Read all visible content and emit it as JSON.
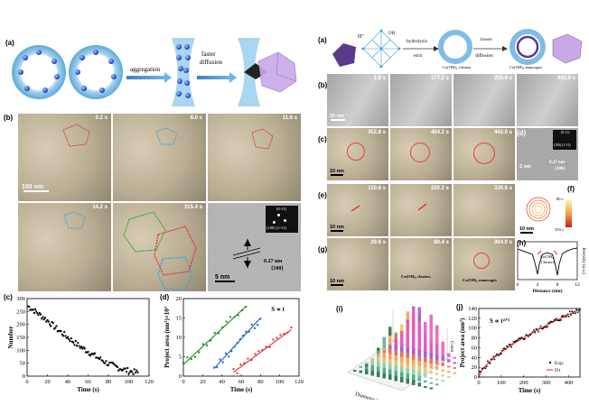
{
  "left": {
    "a": {
      "label": "(a)",
      "aggregation": "aggregation",
      "faster_diffusion_1": "faster",
      "faster_diffusion_2": "diffusion"
    },
    "b": {
      "label": "(b)",
      "frames": [
        "0.2 s",
        "8.0 s",
        "11.6 s",
        "14.2 s",
        "315.4 s"
      ],
      "scale": "100 nm",
      "hr_scale": "5 nm",
      "fft_top": "(0-11)",
      "fft_bottom": "(100)  (1-11)",
      "d_spacing_1": "0.27 nm",
      "d_spacing_2": "{100}"
    },
    "c": {
      "label": "(c)"
    },
    "d": {
      "label": "(d)",
      "relation": "S ∝ t"
    }
  },
  "right": {
    "a": {
      "label": "(a)",
      "h_plus": "H⁺",
      "oh": "OH",
      "hydrolysis_1": "hydrolysis",
      "hydrolysis_2": "etch",
      "lower_1": "lower",
      "lower_2": "diffusion",
      "clusters": "Co(OH)₂ clusters",
      "nanocages": "Co(OH)₂ nanocages"
    },
    "b": {
      "label": "(b)",
      "frames": [
        "1.8 s",
        "177.2 s",
        "255.4 s",
        "443.6 s"
      ],
      "scale": "50 nm"
    },
    "c": {
      "label": "(c)",
      "frames": [
        "352.8 s",
        "404.2 s",
        "442.0 s"
      ],
      "scale": "10 nm"
    },
    "d": {
      "label": "(d)",
      "fft_top": "(0-11)",
      "fft_bottom": "(100)  (1-11)",
      "d_spacing_1": "0.27 nm",
      "d_spacing_2": "{100}",
      "scale": "2 nm"
    },
    "e": {
      "label": "(e)",
      "frames": [
        "110.6 s",
        "220.2 s",
        "330.6 s"
      ],
      "scale": "10 nm"
    },
    "f": {
      "label": "(f)",
      "t1": "80 s",
      "t2": "350 s",
      "scale": "10 nm"
    },
    "g": {
      "label": "(g)",
      "frames": [
        "29.6 s",
        "80.4 s",
        "304.0 s"
      ],
      "scale": "10 nm",
      "clusters": "Co(OH)₂ clusters",
      "nanocages": "Co(OH)₂ nanocages"
    },
    "h": {
      "label": "(h)",
      "annot_1": "Co(OH)₂",
      "annot_2": "Clusters"
    },
    "i": {
      "label": "(i)",
      "xlabel": "Diameter (nm)",
      "ylabel": "Count"
    },
    "j": {
      "label": "(j)",
      "relation": "S ∝ t²ᐟ³",
      "legend_exp": "Exp.",
      "legend_fit": "Fit"
    }
  },
  "chart_data": [
    {
      "id": "left-c",
      "type": "scatter",
      "xlabel": "Time (s)",
      "ylabel": "Number",
      "xlim": [
        0,
        120
      ],
      "ylim": [
        0,
        300
      ],
      "xticks": [
        0,
        20,
        40,
        60,
        80,
        100,
        120
      ],
      "yticks": [
        0,
        50,
        100,
        150,
        200,
        250,
        300
      ],
      "series": [
        {
          "name": "",
          "color": "#000000",
          "trend": [
            [
              1,
              270
            ],
            [
              10,
              245
            ],
            [
              20,
              215
            ],
            [
              30,
              180
            ],
            [
              40,
              150
            ],
            [
              50,
              120
            ],
            [
              60,
              95
            ],
            [
              70,
              70
            ],
            [
              80,
              48
            ],
            [
              90,
              32
            ],
            [
              100,
              20
            ],
            [
              110,
              12
            ]
          ]
        }
      ]
    },
    {
      "id": "left-d",
      "type": "scatter",
      "xlabel": "Time (s)",
      "ylabel": "Project area (nm²)×10³",
      "xlim": [
        0,
        120
      ],
      "ylim": [
        0,
        20
      ],
      "xticks": [
        0,
        20,
        40,
        60,
        80,
        100,
        120
      ],
      "yticks": [
        0,
        5,
        10,
        15,
        20
      ],
      "series": [
        {
          "name": "",
          "color": "#1a8a1a",
          "fit": [
            [
              0,
              3
            ],
            [
              65,
              18
            ]
          ]
        },
        {
          "name": "",
          "color": "#1f5fbf",
          "fit": [
            [
              32,
              2
            ],
            [
              80,
              15
            ]
          ]
        },
        {
          "name": "",
          "color": "#e03030",
          "fit": [
            [
              52,
              1
            ],
            [
              112,
              12
            ]
          ]
        }
      ]
    },
    {
      "id": "right-h",
      "type": "line",
      "xlabel": "Distance (nm)",
      "ylabel": "Intensity (a.u.)",
      "xlim": [
        0,
        12
      ],
      "xticks": [
        0,
        4,
        8,
        12
      ],
      "series": [
        {
          "name": "",
          "color": "#000000",
          "x": [
            0,
            1,
            2,
            3,
            3.6,
            4,
            4.4,
            5,
            6,
            7,
            7.6,
            8,
            8.4,
            9,
            10,
            11,
            12
          ],
          "y": [
            0.85,
            0.8,
            0.75,
            0.7,
            0.4,
            0.15,
            0.45,
            0.7,
            0.75,
            0.7,
            0.4,
            0.12,
            0.45,
            0.72,
            0.8,
            0.85,
            0.88
          ]
        }
      ]
    },
    {
      "id": "right-i",
      "type": "bar",
      "xlabel": "Diameter (nm)",
      "ylabel": "Count",
      "xticks": [
        10,
        15,
        20,
        25,
        30
      ],
      "yticks": [
        0,
        20,
        40,
        60,
        80,
        100
      ],
      "zlabel": "Time (s)"
    },
    {
      "id": "right-j",
      "type": "scatter",
      "xlabel": "Time (s)",
      "ylabel": "Project area (nm²)",
      "xlim": [
        0,
        450
      ],
      "ylim": [
        0,
        140
      ],
      "xticks": [
        0,
        100,
        200,
        300,
        400
      ],
      "yticks": [
        0,
        20,
        40,
        60,
        80,
        100,
        120,
        140
      ],
      "series": [
        {
          "name": "Exp.",
          "color": "#000000"
        },
        {
          "name": "Fit",
          "color": "#e02020"
        }
      ]
    }
  ]
}
